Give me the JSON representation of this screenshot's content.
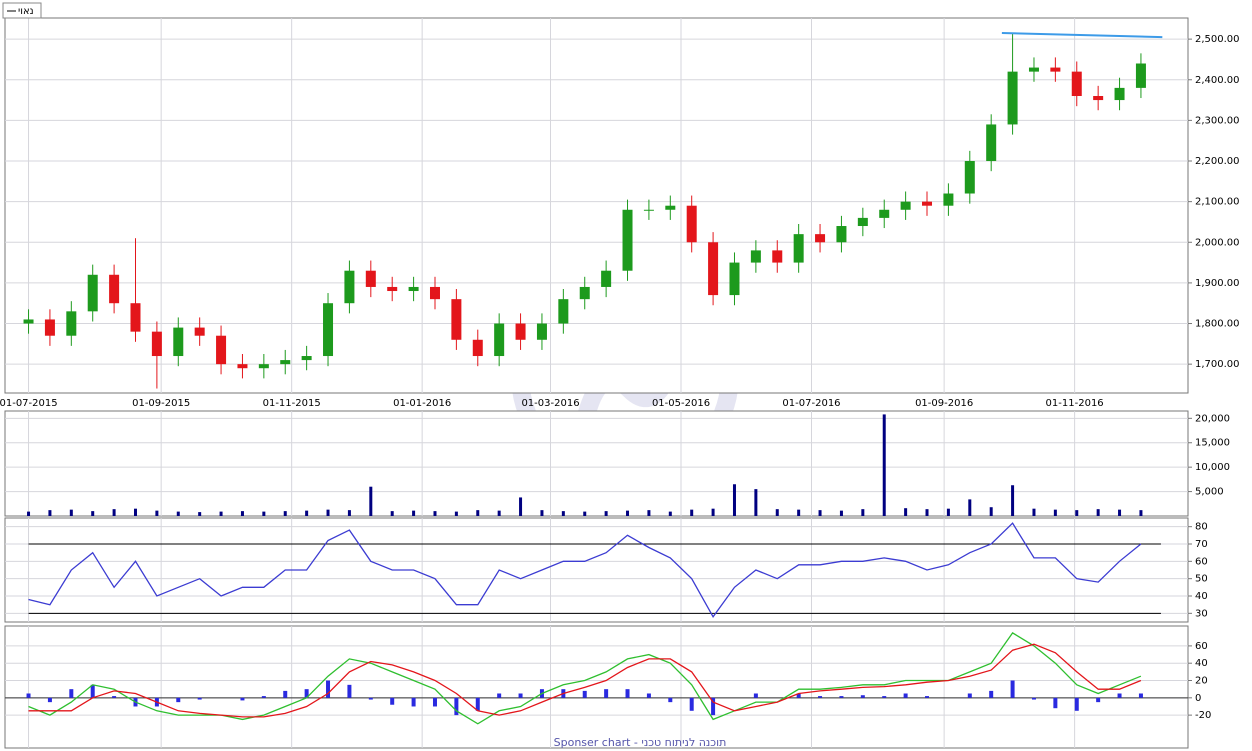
{
  "legend_label": "נאוי",
  "footer": "Sponser chart - תוכנה לניתוח טכני",
  "chart_data": [
    {
      "type": "candlestick",
      "x": [
        0,
        10,
        20,
        30,
        40,
        50,
        60,
        70,
        80,
        90,
        100,
        110,
        120,
        130,
        140,
        150,
        160,
        170,
        180,
        190,
        200,
        210,
        220,
        230,
        240,
        250,
        260,
        270,
        280,
        290,
        300,
        310,
        320,
        330,
        340,
        350,
        360,
        370,
        380,
        390,
        400,
        410,
        420,
        430,
        440,
        450,
        460,
        470,
        480,
        490,
        500,
        510,
        520
      ],
      "open": [
        1800,
        1810,
        1770,
        1830,
        1920,
        1850,
        1780,
        1720,
        1790,
        1770,
        1700,
        1690,
        1700,
        1710,
        1720,
        1850,
        1930,
        1890,
        1880,
        1890,
        1860,
        1760,
        1720,
        1800,
        1760,
        1800,
        1860,
        1890,
        1930,
        2080,
        2080,
        2090,
        2000,
        1870,
        1950,
        1980,
        1950,
        2020,
        2000,
        2040,
        2060,
        2080,
        2100,
        2090,
        2120,
        2200,
        2290,
        2420,
        2430,
        2420,
        2360,
        2350,
        2380
      ],
      "high": [
        1835,
        1835,
        1855,
        1945,
        1945,
        2010,
        1805,
        1815,
        1815,
        1795,
        1725,
        1725,
        1735,
        1745,
        1875,
        1955,
        1955,
        1915,
        1915,
        1915,
        1885,
        1785,
        1825,
        1825,
        1825,
        1885,
        1915,
        1955,
        2105,
        2105,
        2115,
        2115,
        2025,
        1975,
        2005,
        2005,
        2045,
        2045,
        2065,
        2085,
        2105,
        2125,
        2125,
        2145,
        2225,
        2315,
        2515,
        2455,
        2455,
        2445,
        2385,
        2405,
        2465
      ],
      "low": [
        1775,
        1745,
        1745,
        1805,
        1825,
        1755,
        1640,
        1695,
        1745,
        1675,
        1665,
        1665,
        1675,
        1685,
        1695,
        1825,
        1865,
        1855,
        1855,
        1835,
        1735,
        1695,
        1695,
        1735,
        1735,
        1775,
        1835,
        1865,
        1905,
        2055,
        2055,
        1975,
        1845,
        1845,
        1925,
        1925,
        1925,
        1975,
        1975,
        2015,
        2035,
        2055,
        2065,
        2065,
        2095,
        2175,
        2265,
        2395,
        2395,
        2335,
        2325,
        2325,
        2355
      ],
      "close": [
        1810,
        1770,
        1830,
        1920,
        1850,
        1780,
        1720,
        1790,
        1770,
        1700,
        1690,
        1700,
        1710,
        1720,
        1850,
        1930,
        1890,
        1880,
        1890,
        1860,
        1760,
        1720,
        1800,
        1760,
        1800,
        1860,
        1890,
        1930,
        2080,
        2080,
        2090,
        2000,
        1870,
        1950,
        1980,
        1950,
        2020,
        2000,
        2040,
        2060,
        2080,
        2100,
        2090,
        2120,
        2200,
        2290,
        2420,
        2430,
        2420,
        2360,
        2350,
        2380,
        2440
      ],
      "up_color": "#1d9a1d",
      "down_color": "#e3161b",
      "trendline": {
        "x": [
          455,
          530
        ],
        "values": [
          2515,
          2505
        ],
        "color": "#3d9be8"
      },
      "xlim": [
        -11,
        542
      ],
      "xticks": [
        {
          "value": 0,
          "label": "01-07-2015"
        },
        {
          "value": 62,
          "label": "01-09-2015"
        },
        {
          "value": 123,
          "label": "01-11-2015"
        },
        {
          "value": 184,
          "label": "01-01-2016"
        },
        {
          "value": 244,
          "label": "01-03-2016"
        },
        {
          "value": 305,
          "label": "01-05-2016"
        },
        {
          "value": 366,
          "label": "01-07-2016"
        },
        {
          "value": 428,
          "label": "01-09-2016"
        },
        {
          "value": 489,
          "label": "01-11-2016"
        }
      ],
      "ylim": [
        1629,
        2552
      ],
      "yticks": [
        {
          "value": 1700,
          "label": "1,700.00"
        },
        {
          "value": 1800,
          "label": "1,800.00"
        },
        {
          "value": 1900,
          "label": "1,900.00"
        },
        {
          "value": 2000,
          "label": "2,000.00"
        },
        {
          "value": 2100,
          "label": "2,100.00"
        },
        {
          "value": 2200,
          "label": "2,200.00"
        },
        {
          "value": 2300,
          "label": "2,300.00"
        },
        {
          "value": 2400,
          "label": "2,400.00"
        },
        {
          "value": 2500,
          "label": "2,500.00"
        }
      ],
      "grid": true
    },
    {
      "type": "bar",
      "x": [
        0,
        10,
        20,
        30,
        40,
        50,
        60,
        70,
        80,
        90,
        100,
        110,
        120,
        130,
        140,
        150,
        160,
        170,
        180,
        190,
        200,
        210,
        220,
        230,
        240,
        250,
        260,
        270,
        280,
        290,
        300,
        310,
        320,
        330,
        340,
        350,
        360,
        370,
        380,
        390,
        400,
        410,
        420,
        430,
        440,
        450,
        460,
        470,
        480,
        490,
        500,
        510,
        520
      ],
      "values": [
        900,
        1200,
        1300,
        1000,
        1400,
        1500,
        1100,
        900,
        800,
        900,
        1000,
        900,
        1000,
        1100,
        1300,
        1200,
        6000,
        1000,
        1100,
        1000,
        900,
        1200,
        1100,
        3800,
        1200,
        1000,
        900,
        1000,
        1100,
        1200,
        900,
        1300,
        1500,
        6500,
        5500,
        1400,
        1300,
        1200,
        1100,
        1400,
        20800,
        1600,
        1400,
        1500,
        3400,
        1800,
        6300,
        1500,
        1300,
        1200,
        1400,
        1300,
        1200
      ],
      "color": "#000080",
      "xlim": [
        -11,
        542
      ],
      "ylim": [
        0,
        21500
      ],
      "yticks": [
        {
          "value": 5000,
          "label": "5,000"
        },
        {
          "value": 10000,
          "label": "10,000"
        },
        {
          "value": 15000,
          "label": "15,000"
        },
        {
          "value": 20000,
          "label": "20,000"
        }
      ],
      "grid": true
    },
    {
      "type": "line",
      "x": [
        0,
        10,
        20,
        30,
        40,
        50,
        60,
        70,
        80,
        90,
        100,
        110,
        120,
        130,
        140,
        150,
        160,
        170,
        180,
        190,
        200,
        210,
        220,
        230,
        240,
        250,
        260,
        270,
        280,
        290,
        300,
        310,
        320,
        330,
        340,
        350,
        360,
        370,
        380,
        390,
        400,
        410,
        420,
        430,
        440,
        450,
        460,
        470,
        480,
        490,
        500,
        510,
        520
      ],
      "series": [
        {
          "color": "#3c3cd2",
          "values": [
            38,
            35,
            55,
            65,
            45,
            60,
            40,
            45,
            50,
            40,
            45,
            45,
            55,
            55,
            72,
            78,
            60,
            55,
            55,
            50,
            35,
            35,
            55,
            50,
            55,
            60,
            60,
            65,
            75,
            68,
            62,
            50,
            28,
            45,
            55,
            50,
            58,
            58,
            60,
            60,
            62,
            60,
            55,
            58,
            65,
            70,
            82,
            62,
            62,
            50,
            48,
            60,
            70
          ]
        }
      ],
      "reference_lines": [
        30,
        70
      ],
      "xlim": [
        -11,
        542
      ],
      "ylim": [
        25,
        85
      ],
      "yticks": [
        30,
        40,
        50,
        60,
        70,
        80
      ],
      "grid": true
    },
    {
      "type": "line",
      "x": [
        0,
        10,
        20,
        30,
        40,
        50,
        60,
        70,
        80,
        90,
        100,
        110,
        120,
        130,
        140,
        150,
        160,
        170,
        180,
        190,
        200,
        210,
        220,
        230,
        240,
        250,
        260,
        270,
        280,
        290,
        300,
        310,
        320,
        330,
        340,
        350,
        360,
        370,
        380,
        390,
        400,
        410,
        420,
        430,
        440,
        450,
        460,
        470,
        480,
        490,
        500,
        510,
        520
      ],
      "series": [
        {
          "color": "#2fbf2f",
          "values": [
            -10,
            -20,
            -5,
            15,
            10,
            -5,
            -15,
            -20,
            -20,
            -20,
            -25,
            -20,
            -10,
            0,
            25,
            45,
            40,
            30,
            20,
            10,
            -15,
            -30,
            -15,
            -10,
            5,
            15,
            20,
            30,
            45,
            50,
            40,
            15,
            -25,
            -15,
            -5,
            -5,
            10,
            10,
            12,
            15,
            15,
            20,
            20,
            20,
            30,
            40,
            75,
            60,
            40,
            15,
            5,
            15,
            25
          ]
        },
        {
          "color": "#e3161b",
          "values": [
            -15,
            -15,
            -15,
            0,
            8,
            5,
            -5,
            -15,
            -18,
            -20,
            -22,
            -22,
            -18,
            -10,
            5,
            30,
            42,
            38,
            30,
            20,
            5,
            -15,
            -20,
            -15,
            -5,
            5,
            12,
            20,
            35,
            45,
            45,
            30,
            -5,
            -15,
            -10,
            -5,
            5,
            8,
            10,
            12,
            13,
            15,
            18,
            20,
            25,
            32,
            55,
            62,
            52,
            30,
            10,
            10,
            20
          ]
        }
      ],
      "histogram": {
        "color": "#2a2ae0",
        "values": [
          5,
          -5,
          10,
          15,
          2,
          -10,
          -10,
          -5,
          -2,
          0,
          -3,
          2,
          8,
          10,
          20,
          15,
          -2,
          -8,
          -10,
          -10,
          -20,
          -15,
          5,
          5,
          10,
          10,
          8,
          10,
          10,
          5,
          -5,
          -15,
          -20,
          0,
          5,
          0,
          5,
          2,
          2,
          3,
          2,
          5,
          2,
          0,
          5,
          8,
          20,
          -2,
          -12,
          -15,
          -5,
          5,
          5
        ]
      },
      "xlim": [
        -11,
        542
      ],
      "ylim": [
        -58,
        83
      ],
      "yticks": [
        -20,
        0,
        20,
        40,
        60
      ],
      "grid": true
    }
  ]
}
